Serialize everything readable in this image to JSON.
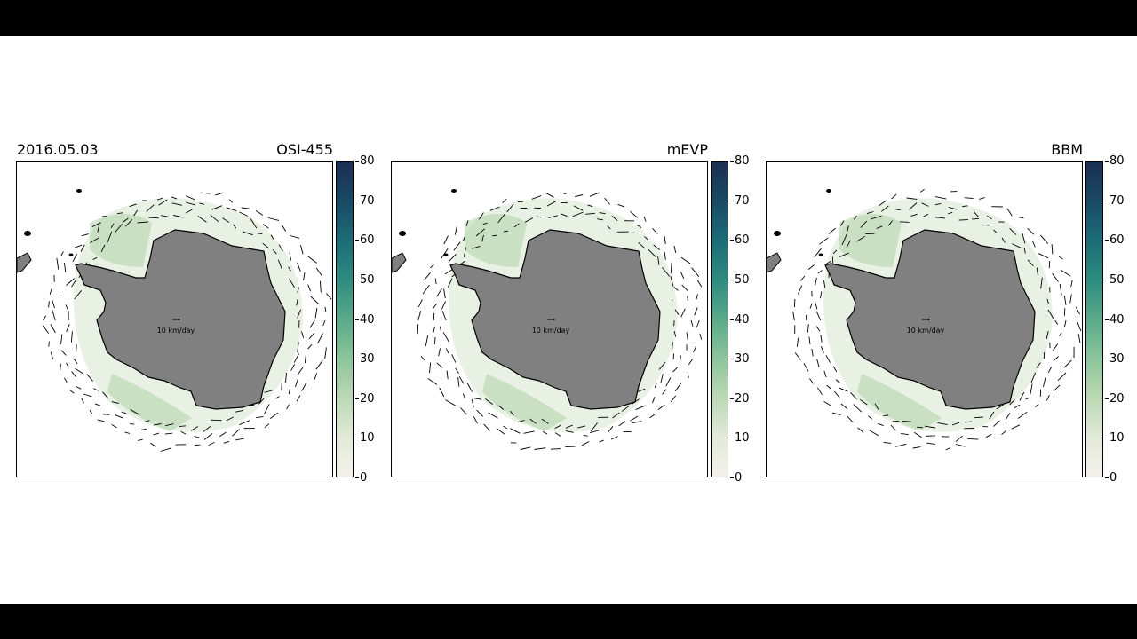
{
  "date": "2016.05.03",
  "reference_arrow_label": "10 km/day",
  "colorbar": {
    "ticks": [
      "0",
      "10",
      "20",
      "30",
      "40",
      "50",
      "60",
      "70",
      "80"
    ],
    "min": 0,
    "max": 80,
    "colors": [
      "#f5f1ea",
      "#e2ead8",
      "#bcd8b6",
      "#8cc49a",
      "#5aa98a",
      "#2e8b80",
      "#1c6c76",
      "#1a4a63",
      "#1b2f50"
    ]
  },
  "colors": {
    "land": "#808080",
    "coast": "#000000",
    "arrow": "#000000",
    "letterbox": "#000000"
  },
  "panels": [
    {
      "title": "OSI-455"
    },
    {
      "title": "mEVP"
    },
    {
      "title": "BBM"
    }
  ]
}
